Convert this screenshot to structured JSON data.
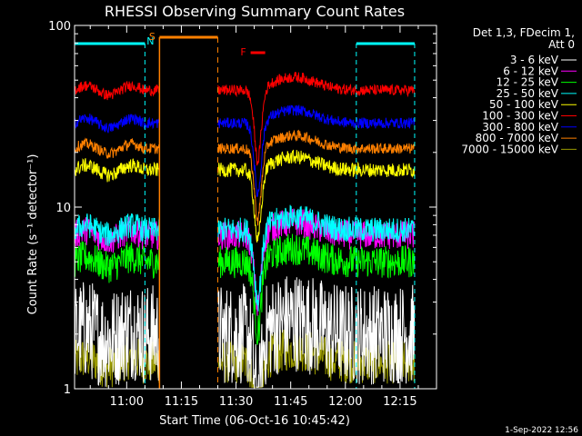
{
  "chart_data": {
    "type": "line",
    "title": "RHESSI Observing Summary Count Rates",
    "xlabel": "Start Time (06-Oct-16 10:45:42)",
    "ylabel": "Count Rate (s⁻¹ detector⁻¹)",
    "yscale": "log",
    "ylim": [
      1,
      100
    ],
    "xlim": [
      "10:45:42",
      "12:25"
    ],
    "x_ticks": [
      "11:00",
      "11:15",
      "11:30",
      "11:45",
      "12:00",
      "12:15"
    ],
    "y_ticks": [
      "1",
      "10",
      "100"
    ],
    "legend_header": [
      "Det 1,3, FDecim 1,",
      "Att 0"
    ],
    "legend_position": "top-right",
    "footer_date": "1-Sep-2022 12:56",
    "flag_labels": {
      "night": "N",
      "saa": "S",
      "flare": "F"
    },
    "series": [
      {
        "name": "3 - 6 keV",
        "color": "#ffffff",
        "level": 2.0,
        "scatter": 0.28
      },
      {
        "name": "6 - 12 keV",
        "color": "#ff00ff",
        "level": 7.0,
        "scatter": 0.08
      },
      {
        "name": "12 - 25 keV",
        "color": "#00ff00",
        "level": 5.0,
        "scatter": 0.09
      },
      {
        "name": "25 - 50 keV",
        "color": "#00ffff",
        "level": 7.5,
        "scatter": 0.07
      },
      {
        "name": "50 - 100 keV",
        "color": "#ffff00",
        "level": 16,
        "scatter": 0.04
      },
      {
        "name": "100 - 300 keV",
        "color": "#ff0000",
        "level": 44,
        "scatter": 0.03
      },
      {
        "name": "300 - 800 keV",
        "color": "#0000ff",
        "level": 29,
        "scatter": 0.03
      },
      {
        "name": "800 - 7000 keV",
        "color": "#ff8000",
        "level": 21,
        "scatter": 0.03
      },
      {
        "name": "7000 - 15000 keV",
        "color": "#999900",
        "level": 1.4,
        "scatter": 0.12
      }
    ],
    "data_gaps": [
      [
        "11:09",
        "11:25"
      ],
      [
        "12:19",
        "12:25"
      ]
    ],
    "night_intervals": [
      [
        "10:45:42",
        "11:05"
      ],
      [
        "12:03",
        "12:19"
      ]
    ],
    "saa_interval": [
      "11:09",
      "11:25"
    ],
    "flare_interval": [
      "11:34",
      "11:38"
    ],
    "dip_time": "11:36"
  }
}
